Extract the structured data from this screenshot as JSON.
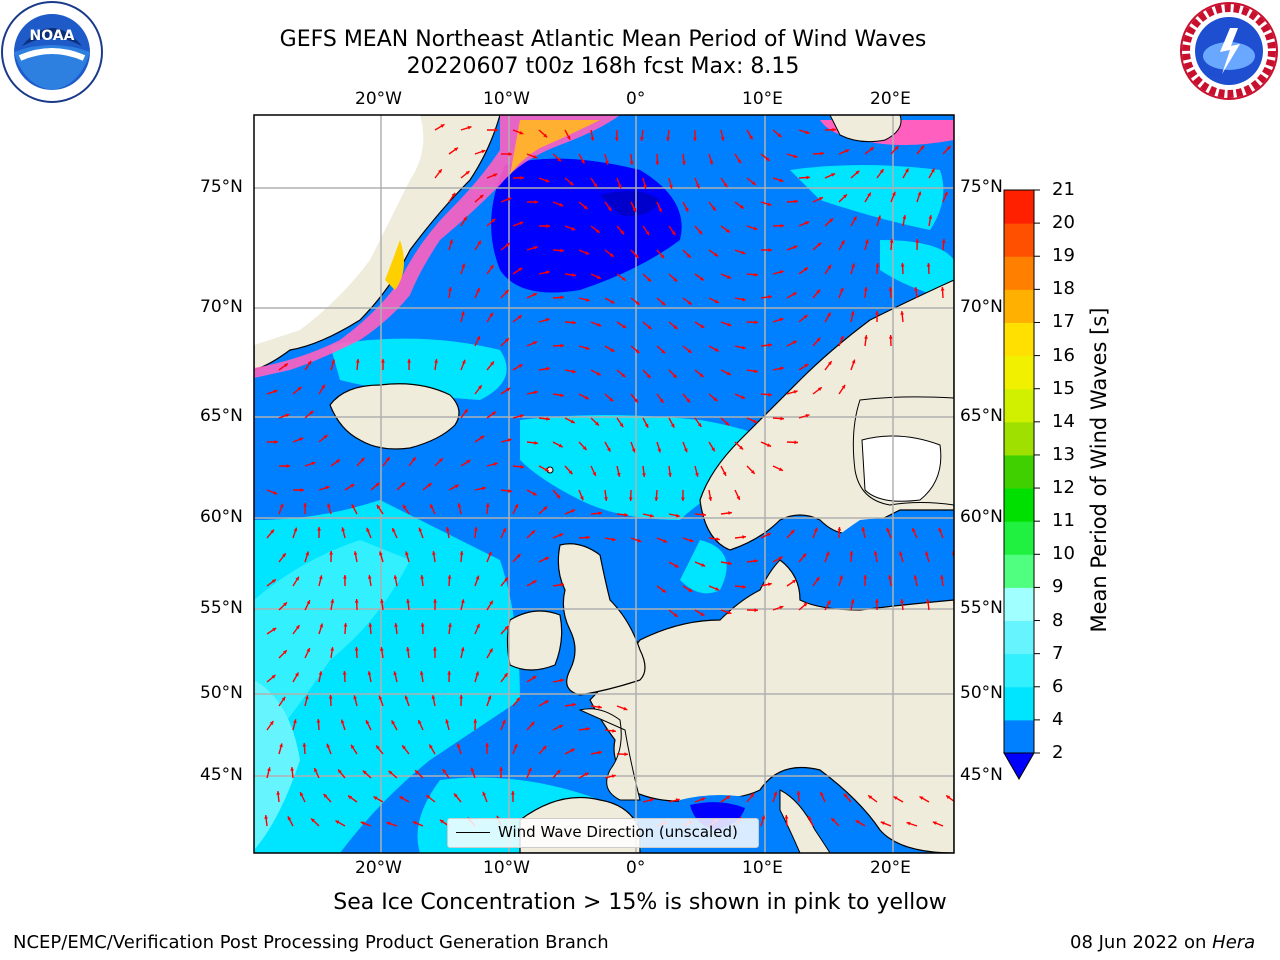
{
  "header": {
    "title_line1": "GEFS MEAN Northeast Atlantic Mean Period of Wind Waves",
    "title_line2": "20220607 t00z 168h fcst   Max: 8.15"
  },
  "logos": {
    "left": {
      "name": "noaa-logo",
      "text": "NOAA",
      "ring_text": "NATIONAL OCEANIC AND ATMOSPHERIC ADMINISTRATION · U.S. DEPARTMENT OF COMMERCE"
    },
    "right": {
      "name": "nws-logo",
      "ring_text": "NATIONAL WEATHER SERVICE"
    }
  },
  "map": {
    "lon_labels": [
      "20°W",
      "10°W",
      "0°",
      "10°E",
      "20°E"
    ],
    "lat_labels": [
      "75°N",
      "70°N",
      "65°N",
      "60°N",
      "55°N",
      "50°N",
      "45°N"
    ],
    "legend_label": "Wind Wave Direction (unscaled)",
    "colors": {
      "land": "#efecdc",
      "ice_free_white": "#ffffff",
      "arrow": "#ff0000",
      "grid": "#b0b0b0"
    }
  },
  "colorbar": {
    "label": "Mean Period of Wind Waves [s]",
    "ticks": [
      "2",
      "4",
      "6",
      "7",
      "8",
      "9",
      "10",
      "11",
      "12",
      "13",
      "14",
      "15",
      "16",
      "17",
      "18",
      "19",
      "20",
      "21"
    ],
    "colors": [
      "#0080ff",
      "#00e5ff",
      "#33f0ff",
      "#66f5ff",
      "#a0ffff",
      "#50ff80",
      "#20f040",
      "#00e000",
      "#40d000",
      "#a0e000",
      "#d0f000",
      "#f0f000",
      "#ffe000",
      "#ffb000",
      "#ff8000",
      "#ff5000",
      "#ff2000",
      "#ff0000"
    ],
    "under_color": "#0000ff"
  },
  "footer": {
    "note": "Sea Ice Concentration > 15% is shown in pink to yellow",
    "branch": "NCEP/EMC/Verification Post Processing Product Generation Branch",
    "date": "08 Jun 2022 on",
    "host": "Hera"
  }
}
